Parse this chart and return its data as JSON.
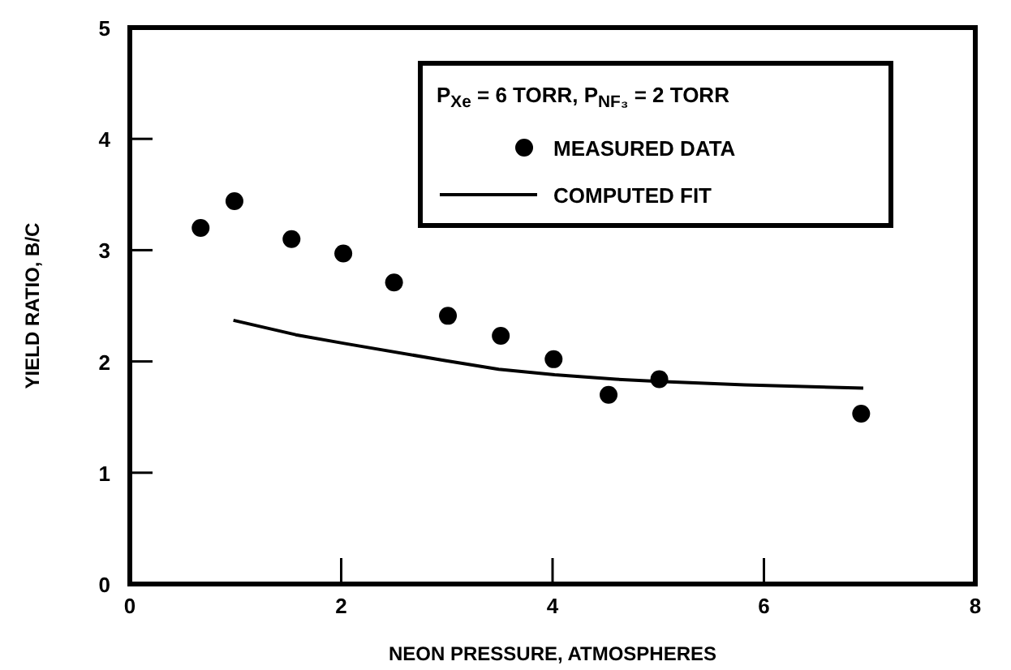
{
  "chart_data": {
    "type": "scatter",
    "xlabel": "NEON PRESSURE, ATMOSPHERES",
    "ylabel": "YIELD RATIO, B/C",
    "legend_title": "P$_{Xe}$ = 6 TORR, P$_{NF₃}$ = 2 TORR",
    "legend": "top right",
    "xlim": [
      0,
      8
    ],
    "ylim": [
      0,
      5
    ],
    "xticks": [
      0,
      2,
      4,
      6,
      8
    ],
    "yticks": [
      0,
      1,
      2,
      3,
      4,
      5
    ],
    "grid": false,
    "series": [
      {
        "name": "MEASURED DATA",
        "marker": "circle",
        "color": "#000000",
        "x": [
          0.67,
          0.99,
          1.53,
          2.02,
          2.5,
          3.01,
          3.51,
          4.01,
          4.53,
          5.01,
          6.92
        ],
        "values": [
          3.2,
          3.44,
          3.1,
          2.97,
          2.71,
          2.41,
          2.23,
          2.02,
          1.7,
          1.84,
          1.53
        ]
      },
      {
        "name": "COMPUTED FIT",
        "type": "line",
        "marker": "none",
        "line_style": "solid",
        "color": "#000000",
        "x": [
          0.98,
          1.57,
          2.04,
          2.97,
          3.49,
          4.02,
          4.6,
          5.01,
          5.82,
          6.94
        ],
        "values": [
          2.37,
          2.24,
          2.16,
          2.01,
          1.93,
          1.88,
          1.84,
          1.82,
          1.79,
          1.76
        ]
      }
    ]
  }
}
